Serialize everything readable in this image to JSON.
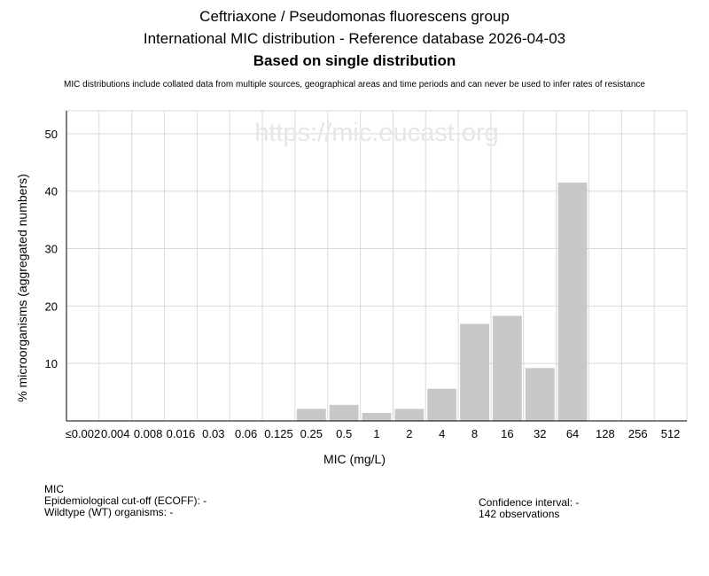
{
  "header": {
    "title": "Ceftriaxone / Pseudomonas fluorescens group",
    "subtitle": "International MIC distribution - Reference database 2026-04-03",
    "subtitle2": "Based on single distribution",
    "disclaimer": "MIC distributions include collated data from multiple sources, geographical areas and time periods and can never be used to infer rates of resistance"
  },
  "watermark": "https://mic.eucast.org",
  "info": {
    "mic_label": "MIC",
    "ecoff": "Epidemiological cut-off (ECOFF): -",
    "wt": "Wildtype (WT) organisms:  -",
    "ci": "Confidence interval: -",
    "observations": "142 observations"
  },
  "colors": {
    "bar": "#c8c8c8",
    "grid": "#d9d9d9",
    "watermark": "#e6e6e6"
  },
  "chart_data": {
    "type": "bar",
    "categories": [
      "≤0.002",
      "0.004",
      "0.008",
      "0.016",
      "0.03",
      "0.06",
      "0.125",
      "0.25",
      "0.5",
      "1",
      "2",
      "4",
      "8",
      "16",
      "32",
      "64",
      "128",
      "256",
      "512"
    ],
    "values": [
      0,
      0,
      0,
      0,
      0,
      0,
      0,
      2.1,
      2.8,
      1.4,
      2.1,
      5.6,
      16.9,
      18.3,
      9.2,
      41.5,
      0,
      0,
      0
    ],
    "xlabel": "MIC (mg/L)",
    "ylabel": "% microorganisms (aggregated numbers)",
    "ylim": [
      0,
      54
    ],
    "yticks": [
      10,
      20,
      30,
      40,
      50
    ],
    "grid": true
  }
}
